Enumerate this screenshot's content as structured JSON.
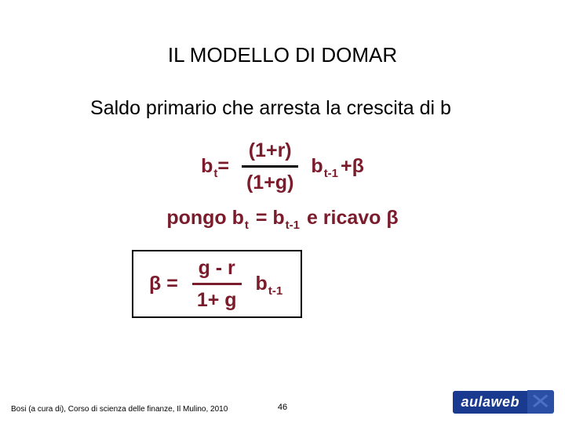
{
  "title": "IL MODELLO DI DOMAR",
  "subtitle": "Saldo primario che arresta la crescita di b",
  "eq1": {
    "lhs_b": "b",
    "lhs_sub": "t",
    "lhs_eq": " =",
    "frac_num": "(1+r)",
    "frac_den": "(1+g)",
    "rhs_b": "b",
    "rhs_sub": "t-1",
    "rhs_plus": " + ",
    "rhs_beta": "β"
  },
  "eq2": {
    "pre": "pongo b",
    "sub1": "t",
    "mid": "  = b",
    "sub2": "t-1",
    "post": " e ricavo ",
    "beta": "β"
  },
  "eq3": {
    "lhs": "β =",
    "frac_num": "g - r",
    "frac_den": "1+ g",
    "rhs_b": "b",
    "rhs_sub": "t-1"
  },
  "footer": {
    "credit": "Bosi (a cura di), Corso di scienza delle finanze, Il Mulino, 2010",
    "page": "46",
    "logo_text": "aulaweb"
  },
  "colors": {
    "eq_color": "#7a1c2b",
    "text_color": "#000000",
    "logo_bg_left": "#1a3a8f",
    "logo_bg_right": "#2a4fa5",
    "background": "#ffffff"
  },
  "fontsize": {
    "title": 26,
    "subtitle": 25,
    "equation": 25,
    "subscript": 15,
    "credit": 10,
    "pagenum": 11
  }
}
